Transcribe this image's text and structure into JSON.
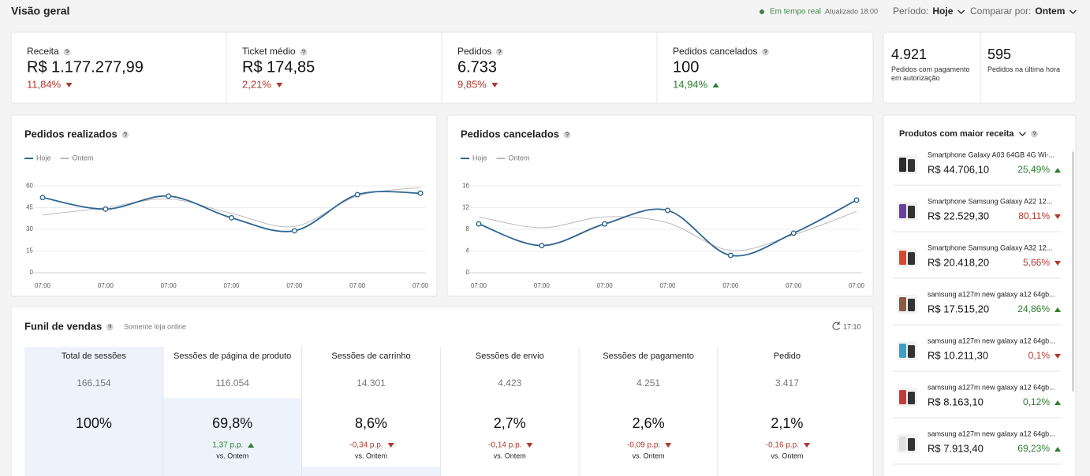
{
  "header": {
    "title": "Visão geral",
    "status": "Em tempo real",
    "updated": "Atualizado 18:00",
    "period_label": "Período:",
    "period_value": "Hoje",
    "compare_label": "Comparar por:",
    "compare_value": "Ontem"
  },
  "kpis": [
    {
      "label": "Receita",
      "value": "R$ 1.177.277,99",
      "change": "11,84%",
      "trend": "down"
    },
    {
      "label": "Ticket médio",
      "value": "R$ 174,85",
      "change": "2,21%",
      "trend": "down"
    },
    {
      "label": "Pedidos",
      "value": "6.733",
      "change": "9,85%",
      "trend": "down"
    },
    {
      "label": "Pedidos cancelados",
      "value": "100",
      "change": "14,94%",
      "trend": "up"
    }
  ],
  "side_kpis": [
    {
      "value": "4.921",
      "label": "Pedidos com pagamento em autorização"
    },
    {
      "value": "595",
      "label": "Pedidos na última hora"
    }
  ],
  "charts": [
    {
      "type": "line",
      "title": "Pedidos realizados",
      "categories": [
        "07:00",
        "07:00",
        "07:00",
        "07:00",
        "07:00",
        "07:00",
        "07:00"
      ],
      "series": [
        {
          "name": "Hoje",
          "color": "#2e6593",
          "markers": true,
          "values": [
            52,
            44,
            53,
            38,
            29,
            54,
            55
          ]
        },
        {
          "name": "Ontem",
          "color": "#b9b9b9",
          "markers": false,
          "values": [
            40,
            45,
            51,
            41,
            32,
            53,
            59
          ]
        }
      ],
      "ylim": [
        0,
        60
      ],
      "yticks": [
        0,
        15,
        30,
        45,
        60
      ],
      "grid": true
    },
    {
      "type": "line",
      "title": "Pedidos cancelados",
      "categories": [
        "07:00",
        "07:00",
        "07:00",
        "07:00",
        "07:00",
        "07:00",
        "07:00"
      ],
      "series": [
        {
          "name": "Hoje",
          "color": "#2e6593",
          "markers": true,
          "values": [
            9,
            5,
            9,
            11.5,
            3.2,
            7.3,
            13.4
          ]
        },
        {
          "name": "Ontem",
          "color": "#b9b9b9",
          "markers": false,
          "values": [
            10.3,
            8.3,
            10.3,
            9.2,
            4.1,
            7,
            11.3
          ]
        }
      ],
      "ylim": [
        0,
        16
      ],
      "yticks": [
        0,
        4,
        8,
        12,
        16
      ],
      "grid": true
    }
  ],
  "funnel": {
    "title": "Funil de vendas",
    "note": "Somente loja online",
    "updated": "17:10",
    "columns": [
      {
        "header": "Total de sessões",
        "count": "166.154",
        "share": "100%"
      },
      {
        "header": "Sessões de página de produto",
        "count": "116.054",
        "share": "69,8%",
        "change": "1,37 p.p.",
        "trend": "up",
        "compare": "vs. Ontem"
      },
      {
        "header": "Sessões de carrinho",
        "count": "14.301",
        "share": "8,6%",
        "change": "-0,34 p.p.",
        "trend": "down",
        "compare": "vs. Ontem"
      },
      {
        "header": "Sessões de envio",
        "count": "4.423",
        "share": "2,7%",
        "change": "-0,14 p.p.",
        "trend": "down",
        "compare": "vs. Ontem"
      },
      {
        "header": "Sessões de pagamento",
        "count": "4.251",
        "share": "2,6%",
        "change": "-0,09 p.p.",
        "trend": "down",
        "compare": "vs. Ontem"
      },
      {
        "header": "Pedido",
        "count": "3.417",
        "share": "2,1%",
        "change": "-0,16 p.p.",
        "trend": "down",
        "compare": "vs. Ontem"
      }
    ]
  },
  "products": {
    "title": "Produtos com maior receita",
    "items": [
      {
        "name": "Smartphone Galaxy A03 64GB 4G Wi-...",
        "value": "R$ 44.706,10",
        "change": "25,49%",
        "trend": "up"
      },
      {
        "name": "Smartphone Samsung Galaxy A22 12...",
        "value": "R$ 22.529,30",
        "change": "80,11%",
        "trend": "down"
      },
      {
        "name": "Smartphone Samsung Galaxy A32 12...",
        "value": "R$ 20.418,20",
        "change": "5,66%",
        "trend": "down"
      },
      {
        "name": "samsung a127m new galaxy a12 64gb...",
        "value": "R$ 17.515,20",
        "change": "24,86%",
        "trend": "up"
      },
      {
        "name": "samsung a127m new galaxy a12 64gb...",
        "value": "R$ 10.211,30",
        "change": "0,1%",
        "trend": "down"
      },
      {
        "name": "samsung a127m new galaxy a12 64gb...",
        "value": "R$ 8.163,10",
        "change": "0,12%",
        "trend": "up"
      },
      {
        "name": "samsung a127m new galaxy a12 64gb...",
        "value": "R$ 7.913,40",
        "change": "69,23%",
        "trend": "up"
      }
    ]
  }
}
